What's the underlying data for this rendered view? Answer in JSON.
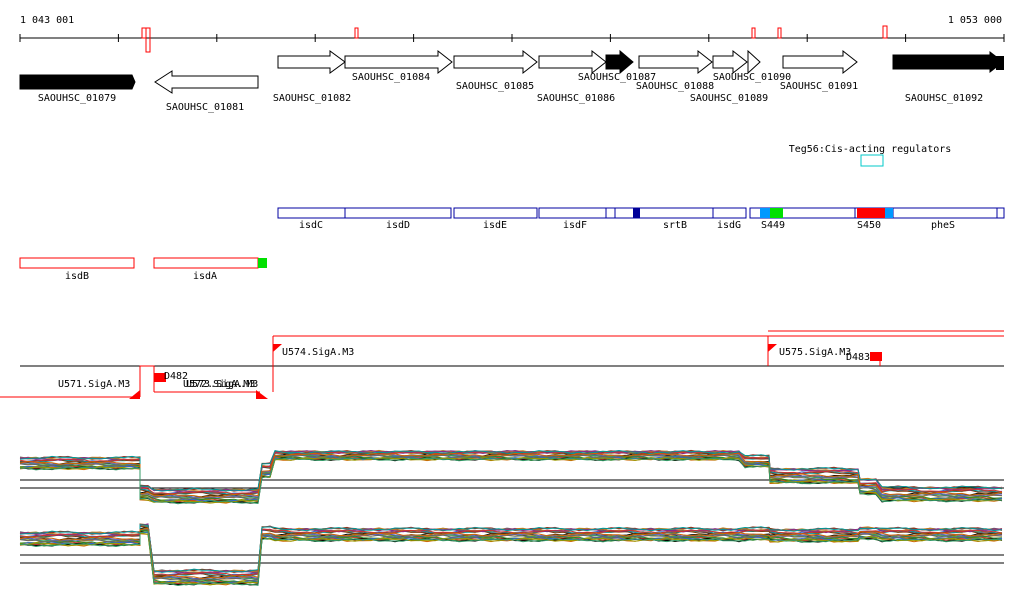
{
  "ruler": {
    "start_label": "1 043 001",
    "end_label": "1 053 000"
  },
  "genes": [
    {
      "label": "SAOUHSC_01079",
      "strand": "+",
      "fill": "black"
    },
    {
      "label": "SAOUHSC_01081",
      "strand": "-",
      "fill": "white"
    },
    {
      "label": "SAOUHSC_01082",
      "strand": "+",
      "fill": "white"
    },
    {
      "label": "SAOUHSC_01084",
      "strand": "+",
      "fill": "white"
    },
    {
      "label": "SAOUHSC_01085",
      "strand": "+",
      "fill": "white"
    },
    {
      "label": "SAOUHSC_01086",
      "strand": "+",
      "fill": "white"
    },
    {
      "label": "SAOUHSC_01087",
      "strand": "+",
      "fill": "black"
    },
    {
      "label": "SAOUHSC_01088",
      "strand": "+",
      "fill": "white"
    },
    {
      "label": "SAOUHSC_01090",
      "strand": "+",
      "fill": "white"
    },
    {
      "label": "SAOUHSC_01089",
      "strand": "+",
      "fill": "white"
    },
    {
      "label": "SAOUHSC_01091",
      "strand": "+",
      "fill": "white"
    },
    {
      "label": "SAOUHSC_01092",
      "strand": "+",
      "fill": "black"
    }
  ],
  "regulator": {
    "label": "Teg56:Cis-acting regulators",
    "color": "#00c8c8"
  },
  "operon_upper": [
    {
      "label": "isdC"
    },
    {
      "label": "isdD"
    },
    {
      "label": "isdE"
    },
    {
      "label": "isdF"
    },
    {
      "label": "srtB"
    },
    {
      "label": "isdG"
    },
    {
      "label": "S449"
    },
    {
      "label": "S450"
    },
    {
      "label": "pheS"
    }
  ],
  "operon_lower": [
    {
      "label": "isdB"
    },
    {
      "label": "isdA"
    }
  ],
  "promoters": [
    {
      "label": "U571.SigA.M3"
    },
    {
      "label": "U572.SigA.M3"
    },
    {
      "label": "U573.SigA.M3"
    },
    {
      "label": "D482"
    },
    {
      "label": "U574.SigA.M3"
    },
    {
      "label": "U575.SigA.M3"
    },
    {
      "label": "D483"
    }
  ],
  "colors": {
    "frame": "#0000a0",
    "promoter": "#ff0000",
    "segment_red": "#ff0000",
    "segment_blue": "#0099ff",
    "segment_green": "#00e000",
    "segment_navy": "#000099"
  },
  "expression": {
    "line_colors": [
      "#000000",
      "#7a3b10",
      "#c08020",
      "#2a8a2a",
      "#3366cc",
      "#8a2a8a",
      "#cc3333",
      "#999900",
      "#666666",
      "#009999",
      "#cc6600",
      "#339966",
      "#993333",
      "#6666cc"
    ],
    "upper_levels": [
      0.82,
      0.35,
      0.3,
      0.7,
      0.95,
      0.85,
      0.62,
      0.45,
      0.33
    ],
    "lower_levels": [
      0.8,
      0.95,
      0.25,
      0.88,
      0.86,
      0.87,
      0.85,
      0.88,
      0.86
    ]
  }
}
